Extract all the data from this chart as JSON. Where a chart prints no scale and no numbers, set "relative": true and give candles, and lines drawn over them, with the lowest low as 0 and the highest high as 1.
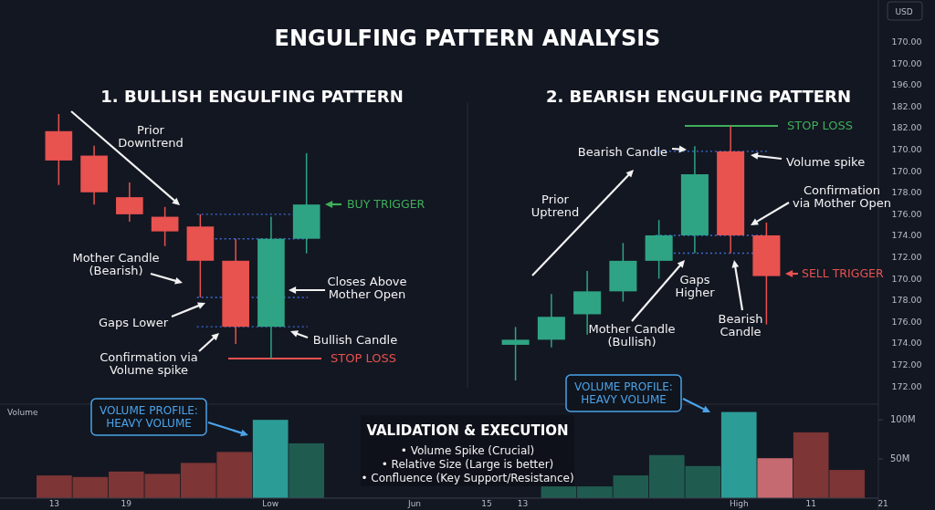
{
  "chart_data": [
    {
      "type": "candlestick",
      "title": "ENGULFING PATTERN ANALYSIS",
      "subtitle": "1. BULLISH ENGULFING PATTERN",
      "relative": true,
      "categories": [
        null,
        null,
        null,
        null,
        null,
        null,
        null,
        null
      ],
      "ohlc": [
        [
          0.93,
          1.0,
          0.71,
          0.81
        ],
        [
          0.83,
          0.87,
          0.63,
          0.68
        ],
        [
          0.66,
          0.72,
          0.56,
          0.59
        ],
        [
          0.58,
          0.62,
          0.46,
          0.52
        ],
        [
          0.54,
          0.59,
          0.25,
          0.4
        ],
        [
          0.4,
          0.49,
          0.06,
          0.13
        ],
        [
          0.13,
          0.58,
          0,
          0.49
        ],
        [
          0.49,
          0.84,
          0.43,
          0.63
        ]
      ],
      "colors": [
        "#e8524f",
        "#e8524f",
        "#e8524f",
        "#e8524f",
        "#e8524f",
        "#e8524f",
        "#2fa484",
        "#2fa484"
      ],
      "ref_lines": [
        {
          "axis": "y",
          "value": 0,
          "label": "STOP LOSS",
          "color": "#e8524f",
          "line_style": "solid"
        },
        {
          "axis": "y",
          "value": 0.59,
          "color": "#3a6fd8",
          "line_style": "dotted"
        },
        {
          "axis": "y",
          "value": 0.49,
          "color": "#3a6fd8",
          "line_style": "dotted"
        },
        {
          "axis": "y",
          "value": 0.25,
          "color": "#3a6fd8",
          "line_style": "dotted"
        },
        {
          "axis": "y",
          "value": 0.13,
          "color": "#3a6fd8",
          "line_style": "dotted"
        }
      ],
      "annotations": [
        "Prior\nDowntrend",
        "Mother Candle\n(Bearish)",
        "Gaps Lower",
        "Confirmation via\nVolume spike",
        "Closes Above\nMother Open",
        "Bullish Candle",
        "BUY TRIGGER"
      ]
    },
    {
      "type": "candlestick",
      "subtitle": "2. BEARISH ENGULFING PATTERN",
      "relative": true,
      "categories": [
        null,
        null,
        null,
        null,
        null,
        null,
        null,
        null
      ],
      "ohlc": [
        [
          0.14,
          0.21,
          0,
          0.16
        ],
        [
          0.16,
          0.34,
          0.13,
          0.25
        ],
        [
          0.26,
          0.43,
          0.18,
          0.35
        ],
        [
          0.35,
          0.54,
          0.31,
          0.47
        ],
        [
          0.47,
          0.63,
          0.4,
          0.57
        ],
        [
          0.57,
          0.92,
          0.5,
          0.81
        ],
        [
          0.9,
          1.0,
          0.5,
          0.57
        ],
        [
          0.57,
          0.62,
          0.22,
          0.41
        ]
      ],
      "colors": [
        "#2fa484",
        "#2fa484",
        "#2fa484",
        "#2fa484",
        "#2fa484",
        "#2fa484",
        "#e8524f",
        "#e8524f"
      ],
      "ref_lines": [
        {
          "axis": "y",
          "value": 1.0,
          "label": "STOP LOSS",
          "color": "#3fae5a",
          "line_style": "solid"
        },
        {
          "axis": "y",
          "value": 0.9,
          "color": "#3a6fd8",
          "line_style": "dotted"
        },
        {
          "axis": "y",
          "value": 0.57,
          "color": "#3a6fd8",
          "line_style": "dotted"
        },
        {
          "axis": "y",
          "value": 0.5,
          "color": "#3a6fd8",
          "line_style": "dotted"
        }
      ],
      "annotations": [
        "Prior\nUptrend",
        "Bearish Candle",
        "Volume spike",
        "Confirmation\nvia Mother Open",
        "Gaps\nHigher",
        "Mother Candle\n(Bullish)",
        "Bearish\nCandle",
        "SELL TRIGGER",
        "USD",
        "170.00",
        "170.00",
        "196.00",
        "182.00",
        "182.00",
        "170.00",
        "170.00",
        "178.00",
        "176.00",
        "174.00",
        "172.00",
        "170.00",
        "178.00",
        "176.00",
        "174.00",
        "172.00",
        "172.00"
      ]
    },
    {
      "type": "bar",
      "title": "Volume",
      "categories": [
        "13",
        null,
        "19",
        null,
        null,
        null,
        "Low",
        null,
        null,
        null,
        "Jun",
        null,
        "15",
        "13",
        null,
        null,
        null,
        null,
        null,
        "High",
        null,
        "11",
        null,
        "21"
      ],
      "values": [
        29,
        27,
        34,
        31,
        45,
        59,
        100,
        70,
        null,
        null,
        null,
        null,
        null,
        null,
        15,
        15,
        29,
        55,
        41,
        110,
        51,
        84,
        36,
        null
      ],
      "colors": [
        "#7d3535",
        "#7d3535",
        "#7d3535",
        "#7d3535",
        "#7d3535",
        "#7d3535",
        "#2c9c96",
        "#1f5c4f",
        null,
        null,
        null,
        null,
        null,
        null,
        "#1f5c4f",
        "#1f5c4f",
        "#1f5c4f",
        "#1f5c4f",
        "#1f5c4f",
        "#2c9c96",
        "#c56a70",
        "#7d3535",
        "#7d3535",
        null
      ],
      "ylim": [
        0,
        120
      ],
      "yticks": [
        {
          "value": 50,
          "label": "50M"
        },
        {
          "value": 100,
          "label": "100M"
        }
      ],
      "annotations": [
        "VOLUME PROFILE:\nHEAVY VOLUME",
        "VOLUME PROFILE:\nHEAVY VOLUME",
        "VALIDATION & EXECUTION",
        "• Volume Spike (Crucial)",
        "• Relative Size (Large is better)",
        "• Confluence (Key Support/Resistance)"
      ]
    }
  ]
}
